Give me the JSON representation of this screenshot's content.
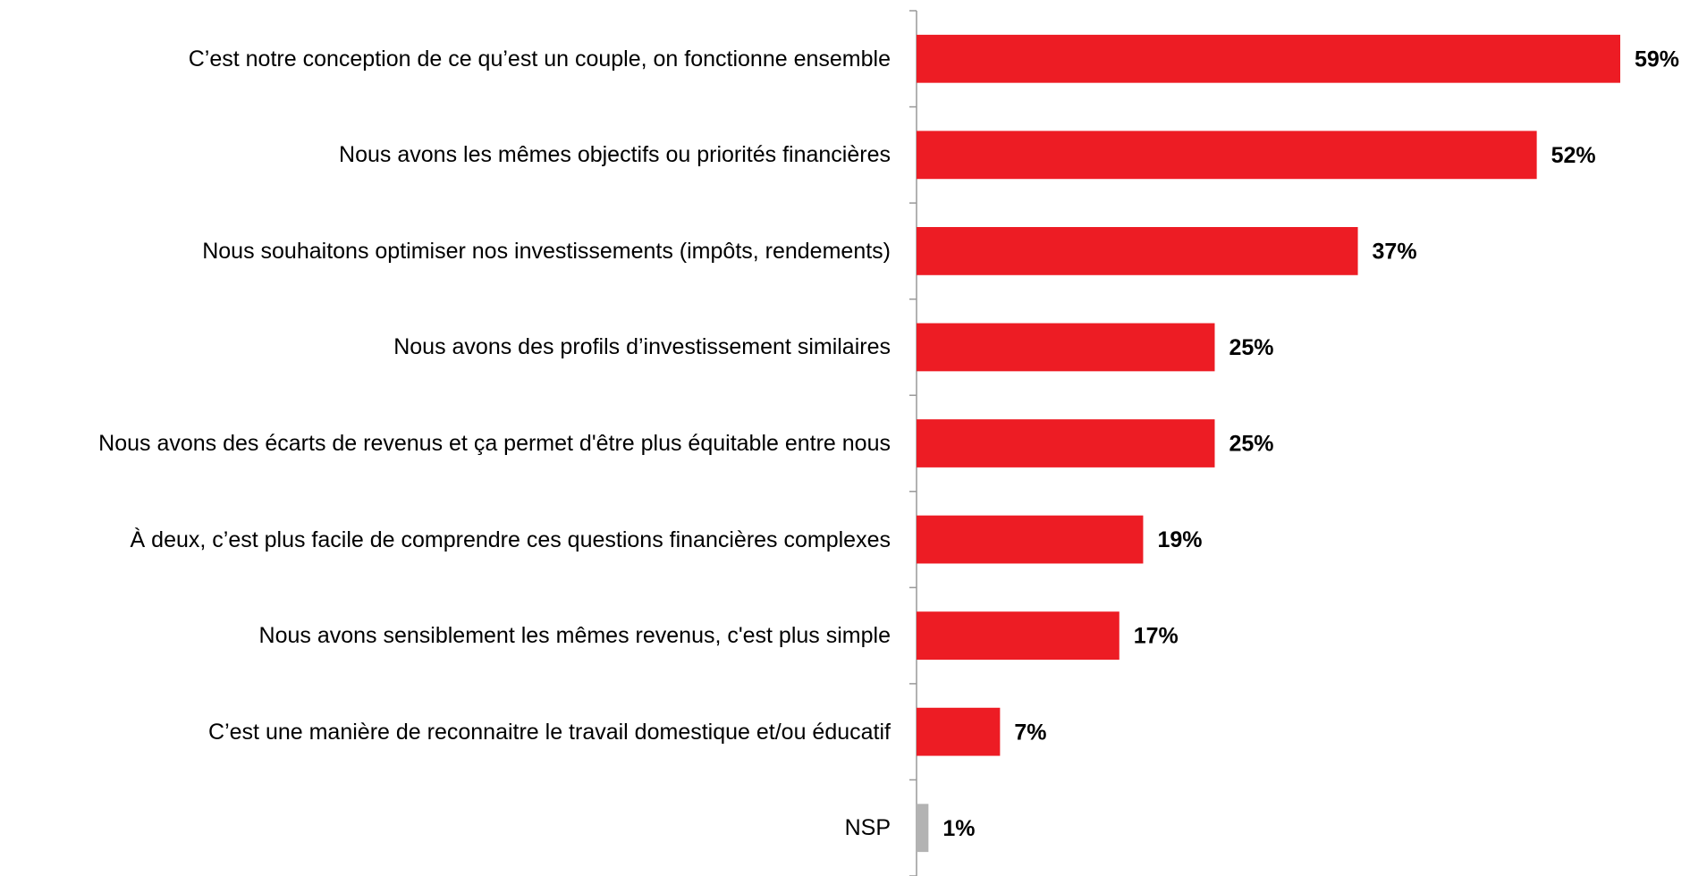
{
  "chart_data": {
    "type": "bar",
    "orientation": "horizontal",
    "categories": [
      "C’est notre conception de ce qu’est un couple, on fonctionne ensemble",
      "Nous avons les mêmes objectifs ou priorités financières",
      "Nous souhaitons optimiser nos investissements (impôts, rendements)",
      "Nous avons des profils d’investissement similaires",
      "Nous avons des écarts de revenus et ça permet d'être plus équitable entre nous",
      "À deux, c’est plus facile de comprendre ces questions financières complexes",
      "Nous avons sensiblement les mêmes revenus, c'est plus simple",
      "C’est une manière de reconnaitre le travail domestique et/ou éducatif",
      "NSP"
    ],
    "values": [
      59,
      52,
      37,
      25,
      25,
      19,
      17,
      7,
      1
    ],
    "value_labels": [
      "59%",
      "52%",
      "37%",
      "25%",
      "25%",
      "19%",
      "17%",
      "7%",
      "1%"
    ],
    "colors": [
      "#ed1c24",
      "#ed1c24",
      "#ed1c24",
      "#ed1c24",
      "#ed1c24",
      "#ed1c24",
      "#ed1c24",
      "#ed1c24",
      "#b3b3b3"
    ]
  }
}
